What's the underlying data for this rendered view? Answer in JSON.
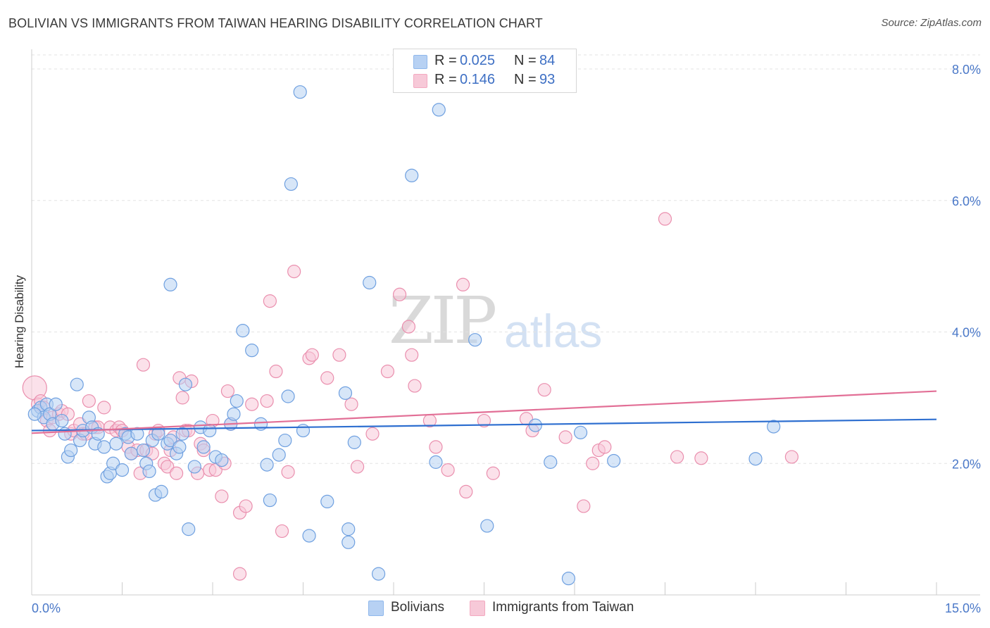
{
  "header": {
    "title": "BOLIVIAN VS IMMIGRANTS FROM TAIWAN HEARING DISABILITY CORRELATION CHART",
    "source": "Source: ZipAtlas.com"
  },
  "watermark": {
    "part1": "ZIP",
    "part2": "atlas"
  },
  "legend": {
    "rows": [
      {
        "r_label": "R =",
        "r_value": "0.025",
        "n_label": "N =",
        "n_value": "84",
        "color": "#8fb8ec"
      },
      {
        "r_label": "R =",
        "r_value": "0.146",
        "n_label": "N =",
        "n_value": "93",
        "color": "#f3a9c0"
      }
    ]
  },
  "bottom_legend": {
    "items": [
      {
        "label": "Bolivians",
        "color": "#8fb8ec"
      },
      {
        "label": "Immigrants from Taiwan",
        "color": "#f3a9c0"
      }
    ]
  },
  "chart_data": {
    "type": "scatter",
    "title": "BOLIVIAN VS IMMIGRANTS FROM TAIWAN HEARING DISABILITY CORRELATION CHART",
    "xlabel": "",
    "ylabel": "Hearing Disability",
    "xlim": [
      0,
      15
    ],
    "ylim": [
      0,
      8.3
    ],
    "x_tick_labels": [
      "0.0%",
      "15.0%"
    ],
    "y_ticks": [
      2,
      4,
      6,
      8
    ],
    "y_tick_labels": [
      "2.0%",
      "4.0%",
      "6.0%",
      "8.0%"
    ],
    "grid": true,
    "legend_position": "top-center",
    "series": [
      {
        "name": "Bolivians",
        "color": "#6fa0e0",
        "fill": "#b7d1f3",
        "trend": {
          "x": [
            0,
            15
          ],
          "y": [
            2.5,
            2.67
          ],
          "color": "#2e6fd0"
        },
        "points": [
          [
            0.1,
            2.8
          ],
          [
            0.15,
            2.85
          ],
          [
            0.2,
            2.7
          ],
          [
            0.25,
            2.9
          ],
          [
            0.3,
            2.75
          ],
          [
            0.35,
            2.6
          ],
          [
            0.4,
            2.9
          ],
          [
            0.5,
            2.65
          ],
          [
            0.55,
            2.45
          ],
          [
            0.6,
            2.1
          ],
          [
            0.65,
            2.2
          ],
          [
            0.75,
            3.2
          ],
          [
            0.8,
            2.35
          ],
          [
            0.85,
            2.5
          ],
          [
            0.95,
            2.7
          ],
          [
            1.0,
            2.55
          ],
          [
            1.05,
            2.3
          ],
          [
            1.1,
            2.45
          ],
          [
            1.2,
            2.25
          ],
          [
            1.25,
            1.8
          ],
          [
            1.3,
            1.85
          ],
          [
            1.35,
            2.0
          ],
          [
            1.4,
            2.3
          ],
          [
            1.5,
            1.9
          ],
          [
            1.55,
            2.45
          ],
          [
            1.6,
            2.4
          ],
          [
            1.65,
            2.15
          ],
          [
            1.75,
            2.45
          ],
          [
            1.85,
            2.2
          ],
          [
            1.9,
            2.0
          ],
          [
            1.95,
            1.88
          ],
          [
            2.0,
            2.35
          ],
          [
            2.05,
            1.52
          ],
          [
            2.1,
            2.45
          ],
          [
            2.15,
            1.57
          ],
          [
            2.25,
            2.3
          ],
          [
            2.3,
            2.35
          ],
          [
            2.3,
            4.72
          ],
          [
            2.4,
            2.15
          ],
          [
            2.45,
            2.25
          ],
          [
            2.5,
            2.45
          ],
          [
            2.55,
            3.2
          ],
          [
            2.6,
            1.0
          ],
          [
            2.7,
            1.95
          ],
          [
            2.8,
            2.55
          ],
          [
            2.85,
            2.25
          ],
          [
            2.95,
            2.5
          ],
          [
            3.05,
            2.1
          ],
          [
            3.15,
            2.05
          ],
          [
            3.3,
            2.6
          ],
          [
            3.35,
            2.75
          ],
          [
            3.4,
            2.95
          ],
          [
            3.5,
            4.02
          ],
          [
            3.65,
            3.72
          ],
          [
            3.8,
            2.6
          ],
          [
            3.9,
            1.98
          ],
          [
            3.95,
            1.44
          ],
          [
            4.1,
            2.13
          ],
          [
            4.2,
            2.35
          ],
          [
            4.25,
            3.02
          ],
          [
            4.3,
            6.25
          ],
          [
            4.45,
            7.65
          ],
          [
            4.5,
            2.5
          ],
          [
            4.6,
            0.9
          ],
          [
            4.9,
            1.42
          ],
          [
            5.2,
            3.07
          ],
          [
            5.25,
            1.0
          ],
          [
            5.25,
            0.8
          ],
          [
            5.35,
            2.32
          ],
          [
            5.6,
            4.75
          ],
          [
            5.75,
            0.32
          ],
          [
            6.3,
            6.38
          ],
          [
            6.7,
            2.02
          ],
          [
            6.75,
            7.38
          ],
          [
            7.35,
            3.88
          ],
          [
            7.55,
            1.05
          ],
          [
            8.35,
            2.58
          ],
          [
            8.6,
            2.02
          ],
          [
            8.9,
            0.25
          ],
          [
            9.1,
            2.47
          ],
          [
            9.65,
            2.04
          ],
          [
            12.0,
            2.07
          ],
          [
            12.3,
            2.56
          ],
          [
            0.05,
            2.75
          ]
        ]
      },
      {
        "name": "Immigrants from Taiwan",
        "color": "#ea8fae",
        "fill": "#f7c9d8",
        "trend": {
          "x": [
            0,
            15
          ],
          "y": [
            2.46,
            3.1
          ],
          "color": "#e26f96"
        },
        "points": [
          [
            0.05,
            3.15
          ],
          [
            0.1,
            2.9
          ],
          [
            0.15,
            2.95
          ],
          [
            0.2,
            2.85
          ],
          [
            0.25,
            2.65
          ],
          [
            0.3,
            2.5
          ],
          [
            0.35,
            2.7
          ],
          [
            0.45,
            2.75
          ],
          [
            0.5,
            2.8
          ],
          [
            0.6,
            2.75
          ],
          [
            0.65,
            2.45
          ],
          [
            0.7,
            2.5
          ],
          [
            0.8,
            2.6
          ],
          [
            0.85,
            2.45
          ],
          [
            0.9,
            2.45
          ],
          [
            0.95,
            2.95
          ],
          [
            1.05,
            2.55
          ],
          [
            1.1,
            2.55
          ],
          [
            1.2,
            2.85
          ],
          [
            1.3,
            2.55
          ],
          [
            1.4,
            2.5
          ],
          [
            1.45,
            2.55
          ],
          [
            1.5,
            2.5
          ],
          [
            1.6,
            2.25
          ],
          [
            1.65,
            2.15
          ],
          [
            1.75,
            2.2
          ],
          [
            1.8,
            1.85
          ],
          [
            1.85,
            3.5
          ],
          [
            1.9,
            2.2
          ],
          [
            2.0,
            2.15
          ],
          [
            2.05,
            2.45
          ],
          [
            2.1,
            2.5
          ],
          [
            2.2,
            2.0
          ],
          [
            2.25,
            1.95
          ],
          [
            2.3,
            2.2
          ],
          [
            2.35,
            2.4
          ],
          [
            2.4,
            1.85
          ],
          [
            2.45,
            3.3
          ],
          [
            2.5,
            3.0
          ],
          [
            2.55,
            2.5
          ],
          [
            2.6,
            2.5
          ],
          [
            2.65,
            3.25
          ],
          [
            2.75,
            1.85
          ],
          [
            2.8,
            2.3
          ],
          [
            2.85,
            2.2
          ],
          [
            2.95,
            1.9
          ],
          [
            3.0,
            2.65
          ],
          [
            3.05,
            1.9
          ],
          [
            3.15,
            1.5
          ],
          [
            3.2,
            2.0
          ],
          [
            3.25,
            3.1
          ],
          [
            3.3,
            2.6
          ],
          [
            3.45,
            1.25
          ],
          [
            3.55,
            1.35
          ],
          [
            3.65,
            2.9
          ],
          [
            3.9,
            2.95
          ],
          [
            3.95,
            4.47
          ],
          [
            3.45,
            0.32
          ],
          [
            4.05,
            3.4
          ],
          [
            4.15,
            0.97
          ],
          [
            4.25,
            1.87
          ],
          [
            4.35,
            4.92
          ],
          [
            4.6,
            3.6
          ],
          [
            4.65,
            3.65
          ],
          [
            4.9,
            3.3
          ],
          [
            5.1,
            3.65
          ],
          [
            5.3,
            2.9
          ],
          [
            5.4,
            1.95
          ],
          [
            5.65,
            2.45
          ],
          [
            5.9,
            3.4
          ],
          [
            6.1,
            4.57
          ],
          [
            6.25,
            4.08
          ],
          [
            6.3,
            3.65
          ],
          [
            6.35,
            3.18
          ],
          [
            6.6,
            2.65
          ],
          [
            6.7,
            2.25
          ],
          [
            6.9,
            1.9
          ],
          [
            7.15,
            4.72
          ],
          [
            7.2,
            1.57
          ],
          [
            7.5,
            2.65
          ],
          [
            7.65,
            1.85
          ],
          [
            8.2,
            2.68
          ],
          [
            8.3,
            2.5
          ],
          [
            8.5,
            3.12
          ],
          [
            8.85,
            2.4
          ],
          [
            9.15,
            1.35
          ],
          [
            9.3,
            2.0
          ],
          [
            9.4,
            2.2
          ],
          [
            9.5,
            2.25
          ],
          [
            10.5,
            5.72
          ],
          [
            10.7,
            2.1
          ],
          [
            11.1,
            2.08
          ],
          [
            12.6,
            2.1
          ]
        ]
      }
    ]
  }
}
